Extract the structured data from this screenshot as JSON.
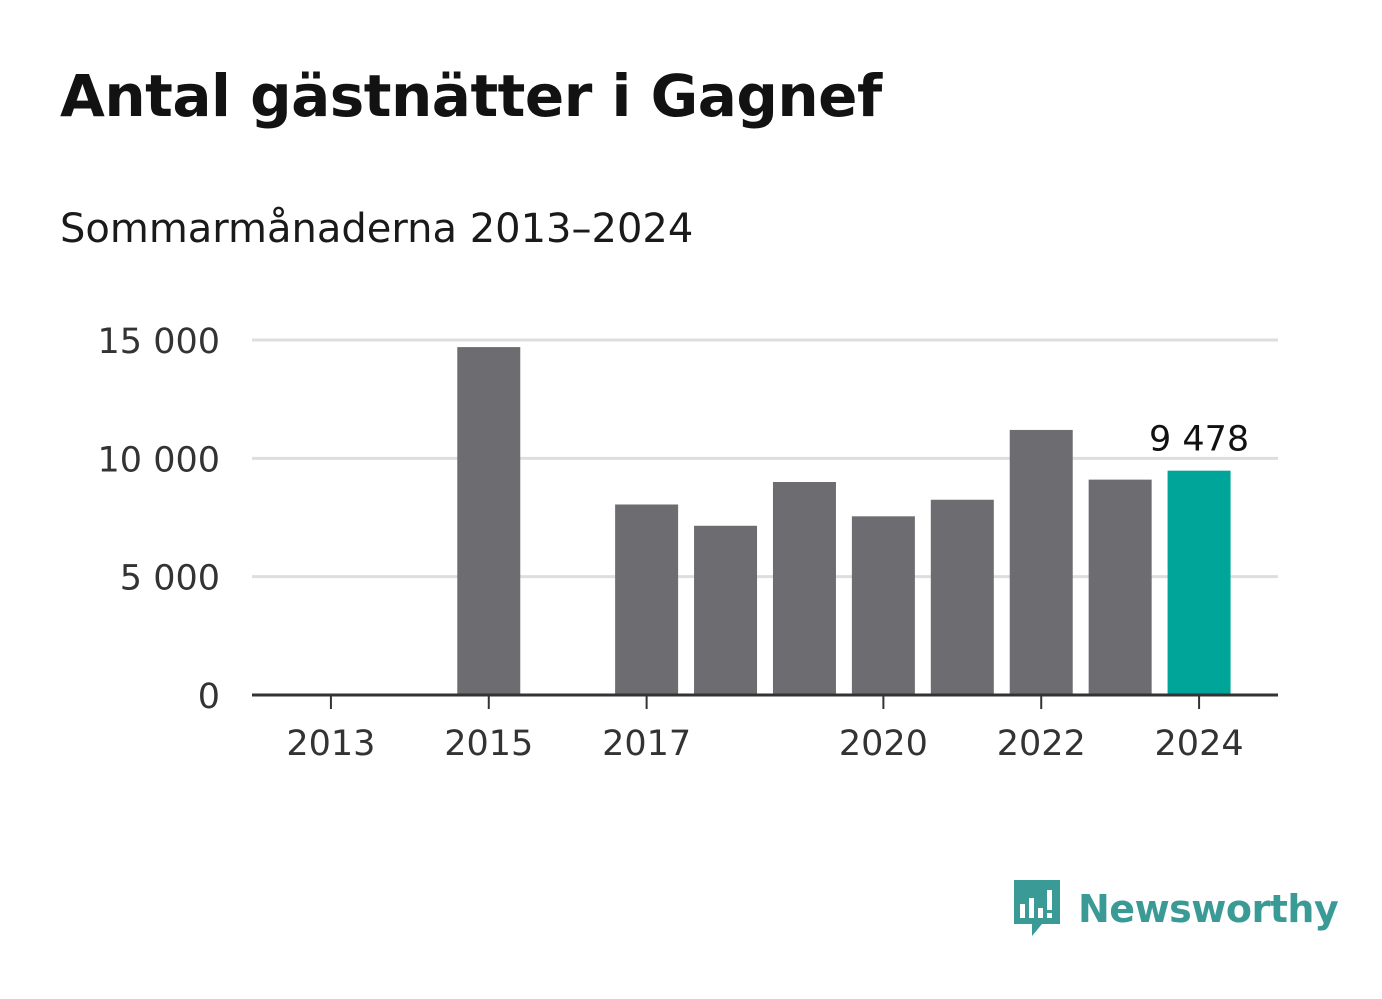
{
  "header": {
    "title": "Antal gästnätter i Gagnef",
    "subtitle": "Sommarmånaderna 2013–2024"
  },
  "colors": {
    "bar": "#6d6c71",
    "highlight": "#00a59a",
    "grid": "#dedede",
    "axis": "#333333",
    "brand": "#3a9b96"
  },
  "chart_data": {
    "type": "bar",
    "title": "Antal gästnätter i Gagnef",
    "subtitle": "Sommarmånaderna 2013–2024",
    "xlabel": "",
    "ylabel": "",
    "categories": [
      "2013",
      "2014",
      "2015",
      "2016",
      "2017",
      "2018",
      "2019",
      "2020",
      "2021",
      "2022",
      "2023",
      "2024"
    ],
    "values": [
      null,
      null,
      14700,
      null,
      8050,
      7150,
      9000,
      7550,
      8250,
      11200,
      9100,
      9478
    ],
    "highlight_index": 11,
    "highlight_label": "9 478",
    "ylim": [
      0,
      15000
    ],
    "yticks": [
      {
        "value": 0,
        "label": "0"
      },
      {
        "value": 5000,
        "label": "5 000"
      },
      {
        "value": 10000,
        "label": "10 000"
      },
      {
        "value": 15000,
        "label": "15 000"
      }
    ],
    "xticks": [
      "2013",
      "2015",
      "2017",
      "2020",
      "2022",
      "2024"
    ],
    "grid": true,
    "legend": "none"
  },
  "brand": {
    "name": "Newsworthy",
    "icon": "newsworthy-logo-icon"
  }
}
